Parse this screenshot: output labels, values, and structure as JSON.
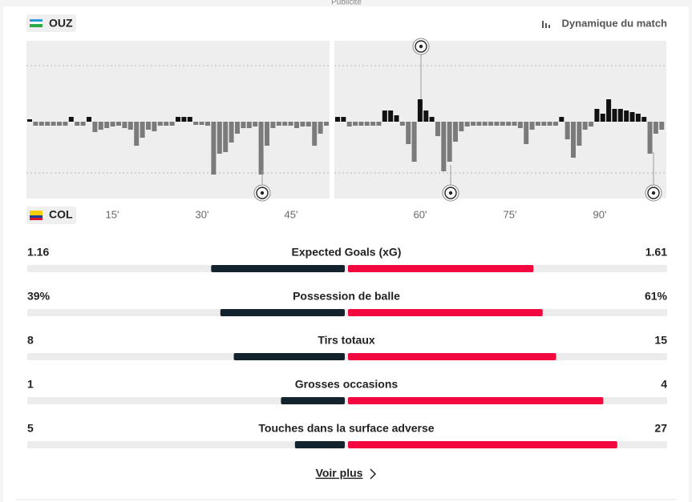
{
  "ad_label": "Publicité",
  "home_team": "OUZ",
  "away_team": "COL",
  "momentum_title": "Dynamique du match",
  "momentum": {
    "axis_labels": [
      "15'",
      "30'",
      "45'",
      "60'",
      "75'",
      "90'"
    ],
    "first_half": [
      3,
      -5,
      -5,
      -5,
      -5,
      -5,
      -5,
      6,
      -5,
      -5,
      6,
      -13,
      -10,
      -8,
      -6,
      -5,
      -8,
      -10,
      -30,
      -20,
      -10,
      -12,
      -5,
      -5,
      -5,
      6,
      6,
      6,
      -4,
      -4,
      -5,
      -66,
      -40,
      -38,
      -26,
      -15,
      -8,
      -8,
      -6,
      -66,
      -30,
      -8,
      -5,
      -5,
      -5,
      -8,
      -6,
      -6,
      -30,
      -15,
      -5
    ],
    "second_half": [
      6,
      6,
      -6,
      -5,
      -5,
      -5,
      -5,
      -5,
      14,
      14,
      8,
      -5,
      -28,
      -50,
      28,
      14,
      6,
      -18,
      -62,
      -50,
      -25,
      -12,
      -6,
      -5,
      -5,
      -5,
      -5,
      -5,
      -5,
      -5,
      -5,
      -8,
      -28,
      -10,
      -5,
      -5,
      -5,
      -5,
      6,
      -22,
      -45,
      -30,
      -10,
      -6,
      16,
      10,
      28,
      16,
      16,
      14,
      12,
      10,
      6,
      -40,
      -15,
      -10
    ]
  },
  "stats": [
    {
      "label": "Expected Goals (xG)",
      "home": 1.16,
      "away": 1.61
    },
    {
      "label": "Possession de balle",
      "home": 39,
      "away": 61,
      "home_label": "39%",
      "away_label": "61%"
    },
    {
      "label": "Tirs totaux",
      "home": 8,
      "away": 15
    },
    {
      "label": "Grosses occasions",
      "home": 1,
      "away": 4
    },
    {
      "label": "Touches dans la surface adverse",
      "home": 5,
      "away": 27
    }
  ],
  "more_link": "Voir plus"
}
